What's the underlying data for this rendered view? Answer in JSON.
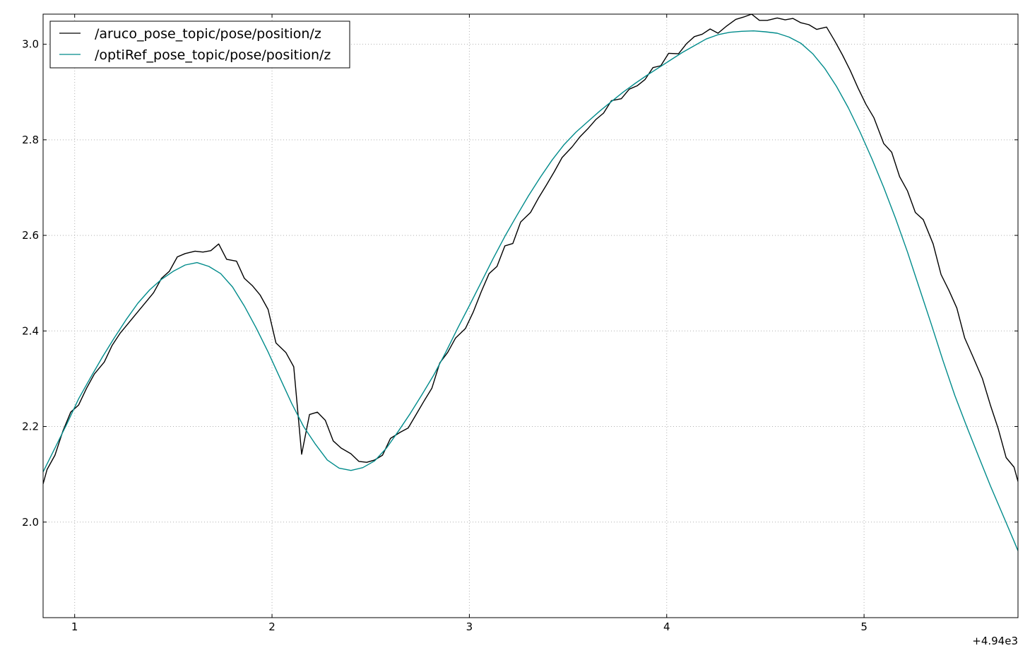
{
  "chart_data": {
    "type": "line",
    "title": "",
    "xlabel": "",
    "ylabel": "",
    "x_offset_label": "+4.94e3",
    "xlim": [
      0.84,
      5.78
    ],
    "ylim": [
      1.8,
      3.063
    ],
    "xticks": [
      1,
      2,
      3,
      4,
      5
    ],
    "xtick_labels": [
      "1",
      "2",
      "3",
      "4",
      "5"
    ],
    "yticks": [
      2.0,
      2.2,
      2.4,
      2.6,
      2.8,
      3.0
    ],
    "ytick_labels": [
      "2.0",
      "2.2",
      "2.4",
      "2.6",
      "2.8",
      "3.0"
    ],
    "grid": true,
    "legend_position": "upper-left",
    "colors": {
      "aruco": "#000000",
      "optiRef": "#008b8b",
      "grid": "#b0b0b0",
      "background": "#ffffff"
    },
    "series": [
      {
        "name": "/aruco_pose_topic/pose/position/z",
        "color": "#000000",
        "x": [
          0.84,
          0.86,
          0.9,
          0.94,
          0.98,
          1.02,
          1.06,
          1.1,
          1.15,
          1.19,
          1.23,
          1.27,
          1.31,
          1.36,
          1.4,
          1.44,
          1.48,
          1.52,
          1.56,
          1.61,
          1.65,
          1.69,
          1.73,
          1.77,
          1.82,
          1.86,
          1.9,
          1.94,
          1.98,
          2.02,
          2.07,
          2.11,
          2.15,
          2.19,
          2.23,
          2.27,
          2.31,
          2.35,
          2.4,
          2.44,
          2.48,
          2.52,
          2.56,
          2.6,
          2.65,
          2.69,
          2.73,
          2.77,
          2.81,
          2.85,
          2.89,
          2.93,
          2.98,
          3.02,
          3.06,
          3.1,
          3.14,
          3.18,
          3.22,
          3.26,
          3.31,
          3.35,
          3.39,
          3.43,
          3.47,
          3.52,
          3.56,
          3.6,
          3.64,
          3.68,
          3.72,
          3.77,
          3.81,
          3.85,
          3.89,
          3.93,
          3.97,
          4.01,
          4.06,
          4.1,
          4.14,
          4.18,
          4.22,
          4.26,
          4.3,
          4.35,
          4.39,
          4.43,
          4.47,
          4.51,
          4.56,
          4.6,
          4.64,
          4.68,
          4.72,
          4.76,
          4.81,
          4.85,
          4.89,
          4.93,
          4.97,
          5.01,
          5.05,
          5.1,
          5.14,
          5.18,
          5.22,
          5.26,
          5.3,
          5.35,
          5.39,
          5.43,
          5.47,
          5.51,
          5.55,
          5.6,
          5.64,
          5.68,
          5.72,
          5.76,
          5.78
        ],
        "y": [
          2.08,
          2.11,
          2.14,
          2.19,
          2.23,
          2.245,
          2.28,
          2.31,
          2.335,
          2.37,
          2.395,
          2.415,
          2.435,
          2.46,
          2.48,
          2.51,
          2.525,
          2.555,
          2.562,
          2.567,
          2.565,
          2.568,
          2.582,
          2.55,
          2.546,
          2.51,
          2.495,
          2.475,
          2.445,
          2.375,
          2.355,
          2.325,
          2.142,
          2.225,
          2.23,
          2.213,
          2.17,
          2.155,
          2.143,
          2.127,
          2.125,
          2.13,
          2.14,
          2.175,
          2.188,
          2.197,
          2.225,
          2.253,
          2.28,
          2.333,
          2.355,
          2.385,
          2.405,
          2.44,
          2.482,
          2.52,
          2.535,
          2.578,
          2.583,
          2.628,
          2.648,
          2.678,
          2.705,
          2.733,
          2.763,
          2.785,
          2.806,
          2.823,
          2.842,
          2.856,
          2.882,
          2.886,
          2.906,
          2.913,
          2.926,
          2.951,
          2.955,
          2.981,
          2.98,
          3.001,
          3.016,
          3.021,
          3.032,
          3.023,
          3.037,
          3.052,
          3.057,
          3.063,
          3.05,
          3.05,
          3.055,
          3.051,
          3.054,
          3.045,
          3.041,
          3.031,
          3.036,
          3.008,
          2.978,
          2.945,
          2.908,
          2.874,
          2.846,
          2.792,
          2.774,
          2.723,
          2.693,
          2.648,
          2.633,
          2.582,
          2.518,
          2.485,
          2.448,
          2.385,
          2.348,
          2.3,
          2.245,
          2.195,
          2.135,
          2.115,
          2.085
        ]
      },
      {
        "name": "/optiRef_pose_topic/pose/position/z",
        "color": "#008b8b",
        "x": [
          0.84,
          0.9,
          0.96,
          1.02,
          1.08,
          1.14,
          1.2,
          1.26,
          1.32,
          1.38,
          1.44,
          1.5,
          1.56,
          1.62,
          1.68,
          1.74,
          1.8,
          1.86,
          1.92,
          1.98,
          2.04,
          2.1,
          2.16,
          2.22,
          2.28,
          2.34,
          2.4,
          2.46,
          2.52,
          2.58,
          2.64,
          2.7,
          2.76,
          2.82,
          2.88,
          2.94,
          3.0,
          3.06,
          3.12,
          3.18,
          3.24,
          3.3,
          3.36,
          3.42,
          3.48,
          3.54,
          3.6,
          3.66,
          3.72,
          3.78,
          3.84,
          3.9,
          3.96,
          4.02,
          4.08,
          4.14,
          4.2,
          4.26,
          4.32,
          4.38,
          4.44,
          4.5,
          4.56,
          4.62,
          4.68,
          4.74,
          4.8,
          4.86,
          4.92,
          4.98,
          5.04,
          5.1,
          5.16,
          5.22,
          5.28,
          5.34,
          5.4,
          5.46,
          5.52,
          5.58,
          5.64,
          5.7,
          5.76,
          5.78
        ],
        "y": [
          2.105,
          2.155,
          2.205,
          2.258,
          2.302,
          2.345,
          2.385,
          2.423,
          2.458,
          2.486,
          2.508,
          2.525,
          2.538,
          2.543,
          2.535,
          2.52,
          2.492,
          2.452,
          2.406,
          2.356,
          2.302,
          2.248,
          2.2,
          2.163,
          2.13,
          2.113,
          2.108,
          2.114,
          2.128,
          2.155,
          2.19,
          2.227,
          2.267,
          2.308,
          2.355,
          2.405,
          2.453,
          2.502,
          2.551,
          2.598,
          2.641,
          2.683,
          2.722,
          2.758,
          2.79,
          2.816,
          2.838,
          2.86,
          2.88,
          2.9,
          2.918,
          2.935,
          2.951,
          2.967,
          2.983,
          2.997,
          3.011,
          3.02,
          3.025,
          3.027,
          3.028,
          3.026,
          3.023,
          3.015,
          3.002,
          2.98,
          2.95,
          2.912,
          2.867,
          2.816,
          2.76,
          2.7,
          2.635,
          2.565,
          2.49,
          2.415,
          2.338,
          2.265,
          2.2,
          2.138,
          2.076,
          2.018,
          1.96,
          1.94
        ]
      }
    ]
  }
}
